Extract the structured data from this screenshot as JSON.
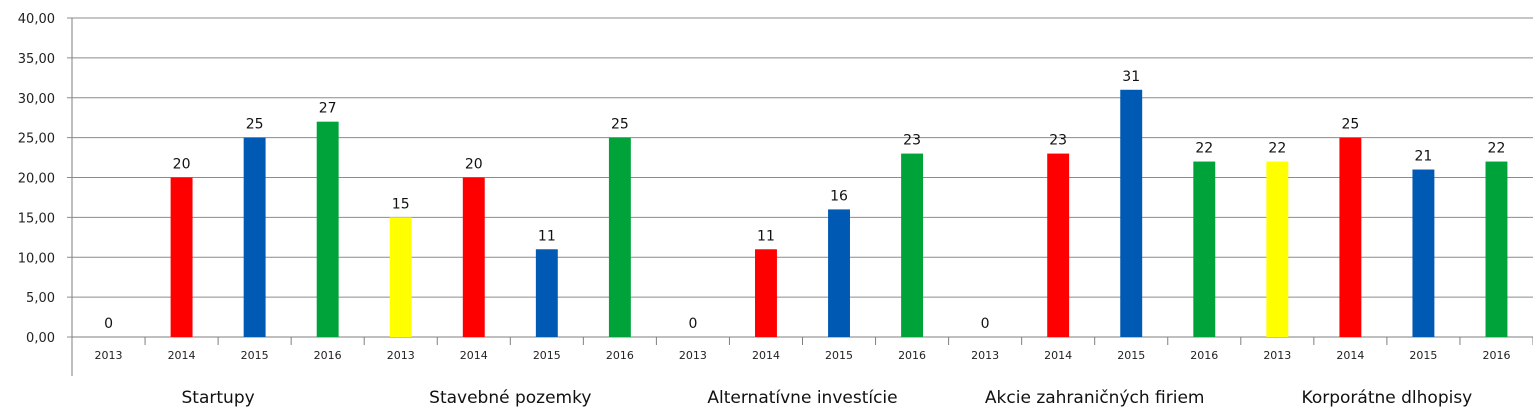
{
  "chart_data": {
    "type": "bar",
    "title": "",
    "xlabel": "",
    "ylabel": "",
    "ylim": [
      0,
      40
    ],
    "yticks": [
      "0,00",
      "5,00",
      "10,00",
      "15,00",
      "20,00",
      "25,00",
      "30,00",
      "35,00",
      "40,00"
    ],
    "grid": true,
    "legend": "none",
    "groups": [
      {
        "label": "Startupy",
        "bars": [
          {
            "year": "2013",
            "value": 0,
            "label": "0"
          },
          {
            "year": "2014",
            "value": 20,
            "label": "20"
          },
          {
            "year": "2015",
            "value": 25,
            "label": "25"
          },
          {
            "year": "2016",
            "value": 27,
            "label": "27"
          }
        ]
      },
      {
        "label": "Stavebné pozemky",
        "bars": [
          {
            "year": "2013",
            "value": 15,
            "label": "15"
          },
          {
            "year": "2014",
            "value": 20,
            "label": "20"
          },
          {
            "year": "2015",
            "value": 11,
            "label": "11"
          },
          {
            "year": "2016",
            "value": 25,
            "label": "25"
          }
        ]
      },
      {
        "label": "Alternatívne investície",
        "bars": [
          {
            "year": "2013",
            "value": 0,
            "label": "0"
          },
          {
            "year": "2014",
            "value": 11,
            "label": "11"
          },
          {
            "year": "2015",
            "value": 16,
            "label": "16"
          },
          {
            "year": "2016",
            "value": 23,
            "label": "23"
          }
        ]
      },
      {
        "label": "Akcie zahraničných firiem",
        "bars": [
          {
            "year": "2013",
            "value": 0,
            "label": "0"
          },
          {
            "year": "2014",
            "value": 23,
            "label": "23"
          },
          {
            "year": "2015",
            "value": 31,
            "label": "31"
          },
          {
            "year": "2016",
            "value": 22,
            "label": "22"
          }
        ]
      },
      {
        "label": "Korporátne dlhopisy",
        "bars": [
          {
            "year": "2013",
            "value": 22,
            "label": "22"
          },
          {
            "year": "2014",
            "value": 25,
            "label": "25"
          },
          {
            "year": "2015",
            "value": 21,
            "label": "21"
          },
          {
            "year": "2016",
            "value": 22,
            "label": "22"
          }
        ]
      }
    ],
    "year_colors": {
      "2013": "#ffff00",
      "2014": "#ff0000",
      "2015": "#0059b3",
      "2016": "#00a33a"
    },
    "grid_color": "#8c8c8c",
    "axis_color": "#7f7f7f"
  }
}
